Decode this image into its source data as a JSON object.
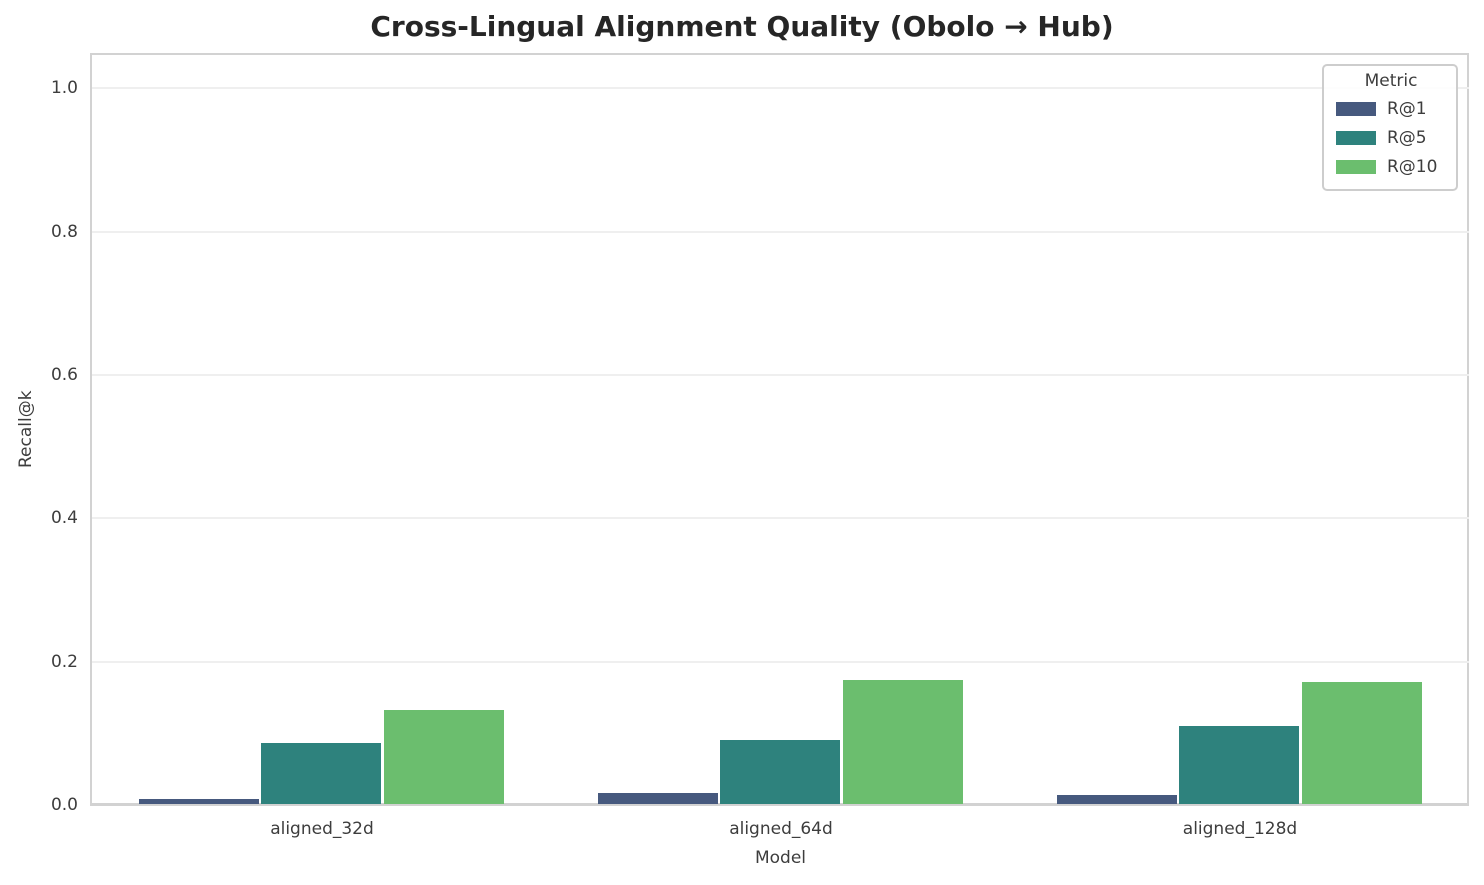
{
  "chart_data": {
    "type": "bar",
    "title": "Cross-Lingual Alignment Quality (Obolo → Hub)",
    "xlabel": "Model",
    "ylabel": "Recall@k",
    "categories": [
      "aligned_32d",
      "aligned_64d",
      "aligned_128d"
    ],
    "series": [
      {
        "name": "R@1",
        "color": "#46597E",
        "values": [
          0.007,
          0.015,
          0.012
        ]
      },
      {
        "name": "R@5",
        "color": "#2E827D",
        "values": [
          0.085,
          0.089,
          0.109
        ]
      },
      {
        "name": "R@10",
        "color": "#6BBE6E",
        "values": [
          0.131,
          0.173,
          0.17
        ]
      }
    ],
    "ylim": [
      0,
      1.049
    ],
    "yticks": [
      0.0,
      0.2,
      0.4,
      0.6,
      0.8,
      1.0
    ],
    "ytick_labels": [
      "0.0",
      "0.2",
      "0.4",
      "0.6",
      "0.8",
      "1.0"
    ],
    "grid": true,
    "legend": {
      "title": "Metric",
      "position": "upper right"
    },
    "bar_group_width_frac": 0.8
  },
  "colors": {
    "background": "#ffffff",
    "grid": "#efefef",
    "spine": "#d2d2d2",
    "text": "#3d3d3d",
    "title_text": "#262626"
  }
}
